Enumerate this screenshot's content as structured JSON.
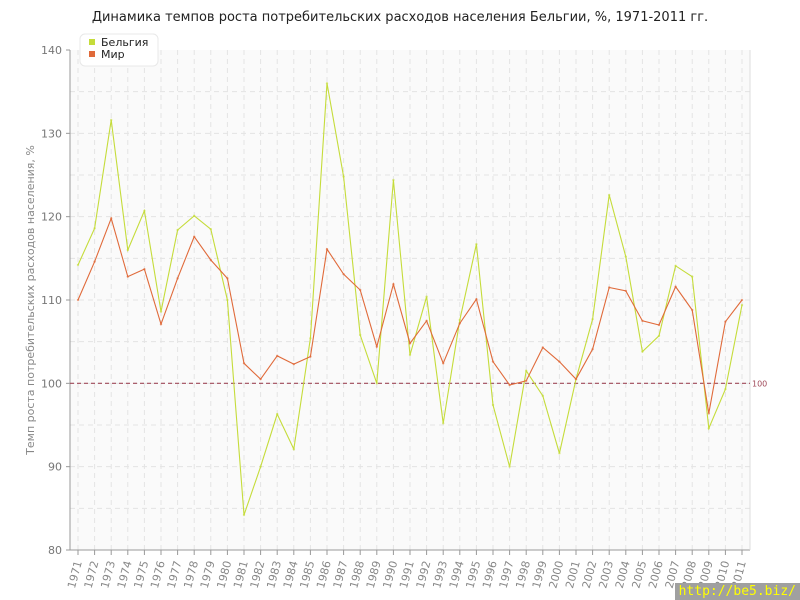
{
  "chart_data": {
    "type": "line",
    "title": "Динамика темпов роста потребительских расходов населения Бельгии, %, 1971-2011 гг.",
    "xlabel": "",
    "ylabel": "Темп роста потребительских расходов населения, %",
    "ylim": [
      80,
      140
    ],
    "yticks": [
      80,
      90,
      100,
      110,
      120,
      130,
      140
    ],
    "grid": true,
    "legend_position": "top-left",
    "x": [
      1971,
      1972,
      1973,
      1974,
      1975,
      1976,
      1977,
      1978,
      1979,
      1980,
      1981,
      1982,
      1983,
      1984,
      1985,
      1986,
      1987,
      1988,
      1989,
      1990,
      1991,
      1992,
      1993,
      1994,
      1995,
      1996,
      1997,
      1998,
      1999,
      2000,
      2001,
      2002,
      2003,
      2004,
      2005,
      2006,
      2007,
      2008,
      2009,
      2010,
      2011
    ],
    "series": [
      {
        "name": "Бельгия",
        "color": "#c5dc3a",
        "values": [
          114.2,
          118.6,
          131.6,
          116,
          120.7,
          108.6,
          118.4,
          120.1,
          118.5,
          110,
          84.2,
          90,
          96.3,
          92.1,
          105.4,
          136,
          124.8,
          105.8,
          100,
          124.4,
          103.4,
          110.4,
          95.2,
          107.6,
          116.7,
          97.4,
          90,
          101.5,
          98.5,
          91.6,
          100.5,
          107.7,
          122.6,
          115.2,
          103.8,
          105.7,
          114.1,
          112.8,
          94.6,
          99.3,
          109.4
        ]
      },
      {
        "name": "Мир",
        "color": "#e06a3a",
        "values": [
          110,
          114.6,
          119.8,
          112.8,
          113.7,
          107.1,
          112.6,
          117.6,
          114.8,
          112.6,
          102.4,
          100.5,
          103.3,
          102.3,
          103.2,
          116.1,
          113.1,
          111.2,
          104.4,
          111.9,
          104.8,
          107.5,
          102.4,
          107.2,
          110.1,
          102.6,
          99.8,
          100.3,
          104.3,
          102.6,
          100.5,
          104.1,
          111.5,
          111.1,
          107.5,
          107,
          111.6,
          108.8,
          96.4,
          107.4,
          110
        ]
      }
    ],
    "reference_line": {
      "value": 100,
      "label": "100",
      "color": "#a04a5a"
    }
  },
  "watermark": "http://be5.biz/"
}
